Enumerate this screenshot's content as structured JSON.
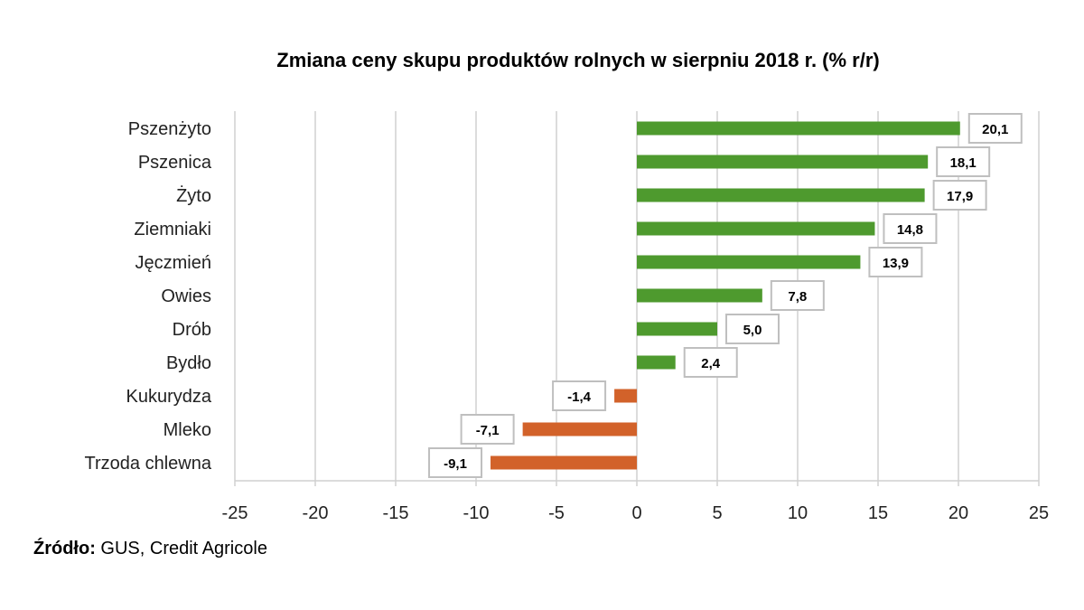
{
  "chart_data": {
    "type": "bar",
    "orientation": "horizontal",
    "title": "Zmiana ceny skupu produktów rolnych w sierpniu 2018 r. (% r/r)",
    "categories": [
      "Pszenżyto",
      "Pszenica",
      "Żyto",
      "Ziemniaki",
      "Jęczmień",
      "Owies",
      "Drób",
      "Bydło",
      "Kukurydza",
      "Mleko",
      "Trzoda chlewna"
    ],
    "values": [
      20.1,
      18.1,
      17.9,
      14.8,
      13.9,
      7.8,
      5.0,
      2.4,
      -1.4,
      -7.1,
      -9.1
    ],
    "data_labels": [
      "20,1",
      "18,1",
      "17,9",
      "14,8",
      "13,9",
      "7,8",
      "5,0",
      "2,4",
      "-1,4",
      "-7,1",
      "-9,1"
    ],
    "xlim": [
      -25,
      25
    ],
    "xticks": [
      -25,
      -20,
      -15,
      -10,
      -5,
      0,
      5,
      10,
      15,
      20,
      25
    ],
    "grid": true,
    "colors": {
      "positive": "#4E9A2E",
      "negative": "#D2622A"
    }
  },
  "source": {
    "label": "Źródło:",
    "text": " GUS, Credit Agricole"
  }
}
